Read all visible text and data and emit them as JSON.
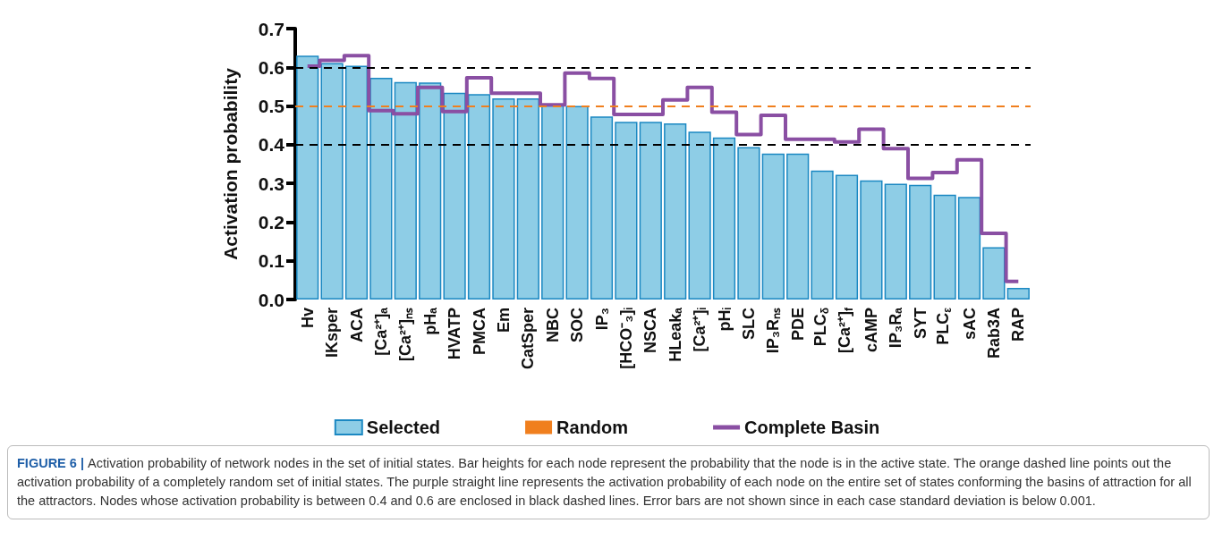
{
  "chart_data": {
    "type": "bar",
    "ylabel": "Activation probability",
    "categories": [
      "Hv",
      "IKsper",
      "ACA",
      "[Ca²⁺]ₐ",
      "[Ca²⁺]ₙₛ",
      "pHₐ",
      "HVATP",
      "PMCA",
      "Em",
      "CatSper",
      "NBC",
      "SOC",
      "IP₃",
      "[HCO⁻₃]ᵢ",
      "NSCA",
      "HLeakₐ",
      "[Ca²⁺]ᵢ",
      "pHᵢ",
      "SLC",
      "IP₃Rₙₛ",
      "PDE",
      "PLC$_{δ}$",
      "[Ca²⁺]$_{f}$",
      "cAMP",
      "IP₃Rₐ",
      "SYT",
      "PLC$_{ε}$",
      "sAC",
      "Rab3A",
      "RAP"
    ],
    "series": [
      {
        "name": "Selected",
        "type": "bar",
        "color": "#8ecde6",
        "values": [
          0.63,
          0.611,
          0.604,
          0.573,
          0.562,
          0.561,
          0.534,
          0.531,
          0.52,
          0.52,
          0.502,
          0.5,
          0.473,
          0.459,
          0.459,
          0.455,
          0.434,
          0.419,
          0.394,
          0.377,
          0.377,
          0.333,
          0.322,
          0.308,
          0.299,
          0.296,
          0.271,
          0.265,
          0.135,
          0.03
        ]
      },
      {
        "name": "Complete Basin",
        "type": "step",
        "color": "#8a4fa3",
        "values": [
          0.603,
          0.618,
          0.63,
          0.488,
          0.48,
          0.548,
          0.486,
          0.573,
          0.533,
          0.533,
          0.503,
          0.585,
          0.571,
          0.478,
          0.478,
          0.516,
          0.548,
          0.484,
          0.426,
          0.476,
          0.414,
          0.414,
          0.407,
          0.44,
          0.39,
          0.313,
          0.328,
          0.361,
          0.171,
          0.047
        ]
      }
    ],
    "ref_lines": [
      {
        "axis": "y",
        "value": 0.6,
        "color": "#000000",
        "line_style": "dashed"
      },
      {
        "axis": "y",
        "value": 0.5,
        "label": "Random",
        "color": "#f07f1e",
        "line_style": "dashed"
      },
      {
        "axis": "y",
        "value": 0.4,
        "color": "#000000",
        "line_style": "dashed"
      }
    ],
    "ylim": [
      0,
      0.7
    ],
    "yticks": [
      {
        "value": 0,
        "label": "0.0"
      },
      0.1,
      0.2,
      0.3,
      0.4,
      0.5,
      0.6,
      0.7
    ],
    "grid": false,
    "legend": "bottom",
    "annotations": [
      "FIGURE 6 |",
      "Activation probability of network nodes in the set of initial states. Bar heights for each node represent the probability that the node is in the active state. The orange dashed line points out the activation probability of a completely random set of initial states. The purple straight line represents the activation probability of each node on the entire set of states conforming the basins of attraction for all the attractors. Nodes whose activation probability is between 0.4 and 0.6 are enclosed in black dashed lines. Error bars are not shown since in each case standard deviation is below 0.001."
    ]
  }
}
